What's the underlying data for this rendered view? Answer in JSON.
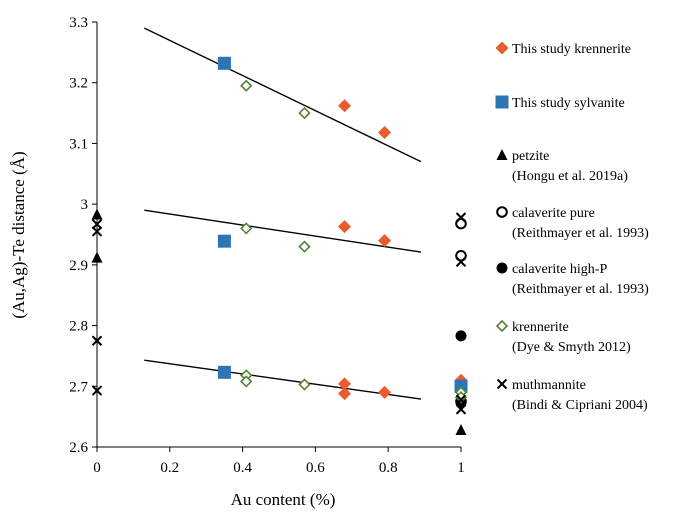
{
  "chart_data": {
    "type": "scatter",
    "title": "",
    "xlabel": "Au content (%)",
    "ylabel": "(Au,Ag)-Te distance (Å)",
    "xlim": [
      0,
      1
    ],
    "ylim": [
      2.6,
      3.3
    ],
    "xticks": [
      "0",
      "0.2",
      "0.4",
      "0.6",
      "0.8",
      "1"
    ],
    "yticks": [
      "2.6",
      "2.7",
      "2.8",
      "2.9",
      "3",
      "3.1",
      "3.2",
      "3.3"
    ],
    "x_tick_values": [
      0,
      0.2,
      0.4,
      0.6,
      0.8,
      1
    ],
    "y_tick_values": [
      2.6,
      2.7,
      2.8,
      2.9,
      3.0,
      3.1,
      3.2,
      3.3
    ],
    "grid": false,
    "legend_position": "right",
    "series": [
      {
        "legend": [
          "This study krennerite"
        ],
        "marker": "diamond",
        "color": "#ea5b2d",
        "points": [
          [
            0.68,
            3.162
          ],
          [
            0.79,
            3.118
          ],
          [
            0.68,
            2.963
          ],
          [
            0.79,
            2.94
          ],
          [
            0.68,
            2.704
          ],
          [
            0.68,
            2.688
          ],
          [
            0.79,
            2.69
          ],
          [
            1.0,
            2.71
          ],
          [
            1.0,
            2.695
          ]
        ]
      },
      {
        "legend": [
          "This study sylvanite"
        ],
        "marker": "square",
        "color": "#2e75b6",
        "points": [
          [
            0.35,
            3.232
          ],
          [
            0.35,
            2.939
          ],
          [
            0.35,
            2.723
          ],
          [
            1.0,
            2.7
          ]
        ]
      },
      {
        "legend": [
          "petzite",
          "(Hongu et al. 2019a)"
        ],
        "marker": "triangle",
        "color": "#000000",
        "points": [
          [
            0.0,
            2.983
          ],
          [
            0.0,
            2.912
          ],
          [
            1.0,
            2.628
          ]
        ]
      },
      {
        "legend": [
          "calaverite pure",
          "(Reithmayer et al. 1993)"
        ],
        "marker": "circle-open",
        "color": "#000000",
        "points": [
          [
            1.0,
            2.968
          ],
          [
            1.0,
            2.915
          ],
          [
            1.0,
            2.675
          ]
        ]
      },
      {
        "legend": [
          "calaverite high-P",
          "(Reithmayer et al. 1993)"
        ],
        "marker": "circle-filled",
        "color": "#000000",
        "points": [
          [
            1.0,
            2.783
          ],
          [
            1.0,
            2.673
          ]
        ]
      },
      {
        "legend": [
          "krennerite",
          "(Dye & Smyth 2012)"
        ],
        "marker": "diamond-open",
        "color": "#548235",
        "points": [
          [
            0.41,
            3.195
          ],
          [
            0.57,
            3.15
          ],
          [
            0.41,
            2.96
          ],
          [
            0.57,
            2.93
          ],
          [
            0.41,
            2.718
          ],
          [
            0.41,
            2.708
          ],
          [
            0.57,
            2.703
          ],
          [
            1.0,
            2.69
          ],
          [
            1.0,
            2.682
          ]
        ]
      },
      {
        "legend": [
          "muthmannite",
          "(Bindi & Cipriani 2004)"
        ],
        "marker": "x",
        "color": "#000000",
        "points": [
          [
            0.0,
            2.967
          ],
          [
            0.0,
            2.955
          ],
          [
            0.0,
            2.775
          ],
          [
            0.0,
            2.693
          ],
          [
            1.0,
            2.978
          ],
          [
            1.0,
            2.905
          ],
          [
            1.0,
            2.678
          ],
          [
            1.0,
            2.662
          ]
        ]
      }
    ],
    "trendlines": [
      {
        "x": [
          0.13,
          0.89
        ],
        "y": [
          3.29,
          3.07
        ]
      },
      {
        "x": [
          0.13,
          0.89
        ],
        "y": [
          2.99,
          2.921
        ]
      },
      {
        "x": [
          0.13,
          0.89
        ],
        "y": [
          2.743,
          2.679
        ]
      }
    ]
  }
}
